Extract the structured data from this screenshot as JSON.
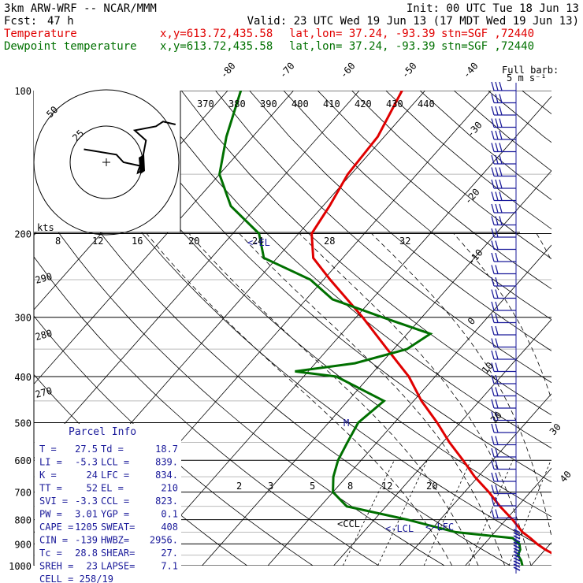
{
  "header": {
    "model": "3km ARW-WRF -- NCAR/MMM",
    "init": "Init: 00 UTC Tue 18 Jun 13",
    "fcst_label": "Fcst:",
    "fcst_value": "47 h",
    "valid": "Valid: 23 UTC Wed 19 Jun 13 (17 MDT Wed 19 Jun 13)",
    "temp_label": "Temperature",
    "dew_label": "Dewpoint temperature",
    "loc": "x,y=613.72,435.58",
    "latlon": "lat,lon= 37.24, -93.39",
    "stn": "stn=SGF ,72440"
  },
  "colors": {
    "temperature": "#e00000",
    "dewpoint": "#007000",
    "barbs": "#1a1a9a",
    "grid": "#000000"
  },
  "chart_data": {
    "type": "line",
    "title": "",
    "y_axis": "pressure (hPa), log scale",
    "pressure_ticks": [
      "100",
      "200",
      "300",
      "400",
      "500",
      "600",
      "700",
      "800",
      "900",
      "1000"
    ],
    "isotherm_labels": [
      "-80",
      "-70",
      "-60",
      "-50",
      "-40",
      "-30",
      "-20",
      "-10",
      "0",
      "10",
      "20",
      "30",
      "40"
    ],
    "theta_labels": [
      "370",
      "380",
      "390",
      "400",
      "410",
      "420",
      "430",
      "440"
    ],
    "theta_side_labels": [
      "290",
      "280",
      "270"
    ],
    "mixing_ratio_labels": [
      "2",
      "3",
      "5",
      "8",
      "12",
      "20"
    ],
    "hodo_speed_labels": [
      "8",
      "12",
      "16",
      "20",
      "24",
      "28",
      "32"
    ],
    "hodo_unit": "kts",
    "hodo_ring_labels": [
      "50",
      "25"
    ],
    "barb_legend": "Full barb:\n5 m s⁻¹",
    "series": [
      {
        "name": "Temperature",
        "pressure": [
          1000,
          975,
          950,
          925,
          900,
          875,
          850,
          800,
          750,
          700,
          650,
          600,
          550,
          500,
          450,
          400,
          350,
          300,
          250,
          225,
          200,
          175,
          150,
          125,
          100
        ],
        "temperature_c": [
          27.5,
          24.8,
          22.3,
          20.0,
          18.0,
          16.2,
          14.2,
          11.0,
          7.3,
          3.7,
          -0.5,
          -4.5,
          -9.0,
          -13.5,
          -18.8,
          -24.0,
          -31.0,
          -39.0,
          -49.0,
          -54.5,
          -58.0,
          -59.0,
          -60.5,
          -61.0,
          -63.5
        ]
      },
      {
        "name": "Dewpoint temperature",
        "pressure": [
          1000,
          975,
          950,
          925,
          900,
          875,
          850,
          800,
          750,
          700,
          650,
          600,
          550,
          500,
          450,
          400,
          390,
          375,
          350,
          325,
          300,
          275,
          250,
          225,
          200,
          175,
          150,
          125,
          100
        ],
        "dewpoint_c": [
          18.7,
          17.8,
          16.6,
          16.2,
          15.3,
          13.5,
          4.0,
          -5.0,
          -16.0,
          -20.0,
          -22.0,
          -23.5,
          -24.5,
          -25.5,
          -24.5,
          -35.0,
          -42.0,
          -34.0,
          -28.0,
          -26.5,
          -36.0,
          -46.0,
          -52.0,
          -62.0,
          -66.0,
          -74.0,
          -80.0,
          -84.0,
          -88.0
        ]
      }
    ],
    "markers": [
      {
        "label": "<-EL",
        "pressure": 210,
        "temperature_c": -58
      },
      {
        "label": "<-LCL",
        "pressure": 839,
        "temperature_c": 18
      },
      {
        "label": "<-LFC",
        "pressure": 834,
        "temperature_c": 28
      },
      {
        "label": "M",
        "pressure": 500,
        "temperature_c": 15.5
      }
    ],
    "hodograph": {
      "u_kts": [
        -3.8,
        1.7,
        2.9,
        5.7,
        5.4,
        5.3,
        5.7,
        6.7,
        4.8,
        8.4,
        9.6,
        11.7
      ],
      "v_kts": [
        2.2,
        1.3,
        0.0,
        -0.6,
        -1.4,
        -1.8,
        -1.6,
        3.7,
        5.4,
        6.1,
        6.9,
        6.4
      ]
    }
  },
  "parcel": {
    "title": "Parcel Info",
    "rows": [
      [
        "T  =",
        "27.5",
        "Td =",
        "18.7"
      ],
      [
        "LI =",
        "-5.3",
        "LCL =",
        "839."
      ],
      [
        "K  =",
        "24",
        "LFC =",
        "834."
      ],
      [
        "TT =",
        "52",
        "EL  =",
        "210"
      ],
      [
        "SVI =",
        "-3.3",
        "CCL =",
        "823."
      ],
      [
        "PW =",
        "3.01",
        "YGP =",
        "0.1"
      ],
      [
        "CAPE =",
        "1205",
        "SWEAT=",
        "408"
      ],
      [
        "CIN =",
        "-139",
        "HWBZ=",
        "2956."
      ],
      [
        "Tc =",
        "28.8",
        "SHEAR=",
        "27."
      ],
      [
        "SREH =",
        "23",
        "LAPSE=",
        "7.1"
      ]
    ],
    "cell": "CELL = 258/19"
  }
}
